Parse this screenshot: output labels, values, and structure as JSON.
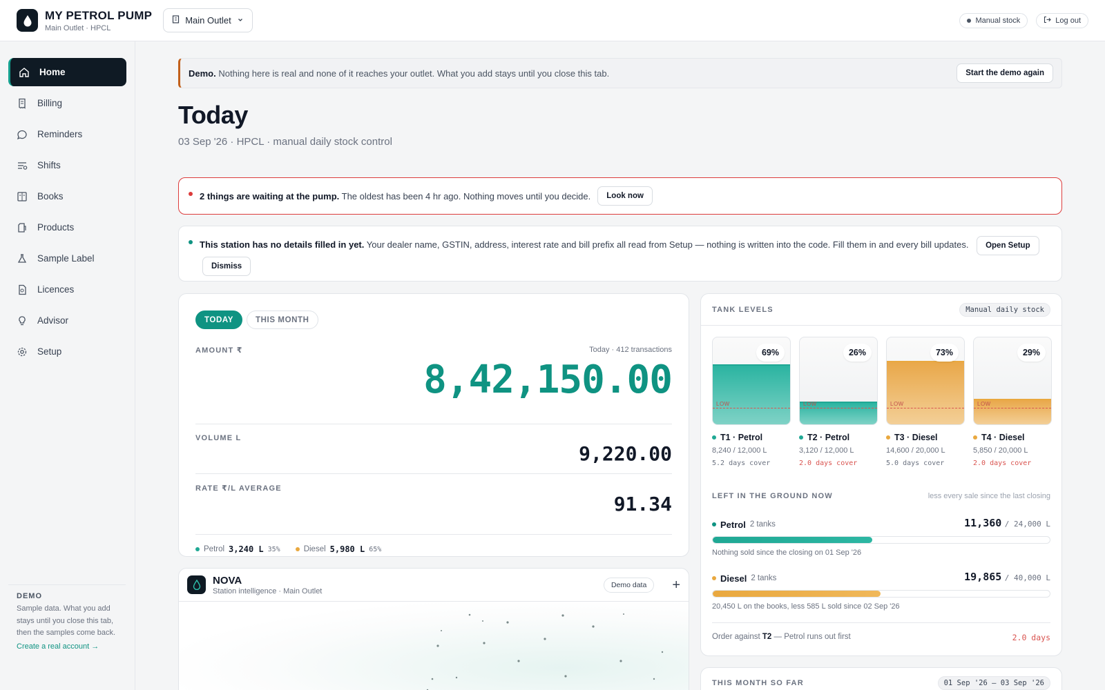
{
  "header": {
    "brand_title": "MY PETROL PUMP",
    "brand_sub": "Main Outlet · HPCL",
    "outlet_select": "Main Outlet",
    "stock_mode": "Manual stock",
    "logout": "Log out"
  },
  "sidebar": {
    "items": [
      {
        "label": "Home",
        "icon": "home-icon",
        "active": true
      },
      {
        "label": "Billing",
        "icon": "receipt-icon"
      },
      {
        "label": "Reminders",
        "icon": "chat-bubble-icon"
      },
      {
        "label": "Shifts",
        "icon": "shifts-icon"
      },
      {
        "label": "Books",
        "icon": "book-icon"
      },
      {
        "label": "Products",
        "icon": "fuel-can-icon"
      },
      {
        "label": "Sample Label",
        "icon": "flask-icon"
      },
      {
        "label": "Licences",
        "icon": "document-icon"
      },
      {
        "label": "Advisor",
        "icon": "lightbulb-icon"
      },
      {
        "label": "Setup",
        "icon": "gear-icon"
      }
    ],
    "demo": {
      "label": "DEMO",
      "text": "Sample data. What you add stays until you close this tab, then the samples come back.",
      "link": "Create a real account →"
    }
  },
  "banner": {
    "strong": "Demo.",
    "text": "Nothing here is real and none of it reaches your outlet. What you add stays until you close this tab.",
    "button": "Start the demo again"
  },
  "page": {
    "title": "Today",
    "subtitle": "03 Sep '26 · HPCL · manual daily stock control"
  },
  "alert": {
    "strong": "2 things are waiting at the pump.",
    "text": "The oldest has been 4 hr ago. Nothing moves until you decide.",
    "button": "Look now"
  },
  "notice": {
    "strong": "This station has no details filled in yet.",
    "text": "Your dealer name, GSTIN, address, interest rate and bill prefix all read from Setup — nothing is written into the code. Fill them in and every bill updates.",
    "open_button": "Open Setup",
    "dismiss_button": "Dismiss"
  },
  "sales": {
    "tab_today": "TODAY",
    "tab_month": "THIS MONTH",
    "amount_label": "AMOUNT ₹",
    "amount_meta": "Today · 412 transactions",
    "amount_value": "8,42,150.00",
    "volume_label": "VOLUME L",
    "volume_value": "9,220.00",
    "rate_label": "RATE ₹/L AVERAGE",
    "rate_value": "91.34",
    "petrol_label": "Petrol",
    "petrol_volume": "3,240 L",
    "petrol_pct": "35%",
    "diesel_label": "Diesel",
    "diesel_volume": "5,980 L",
    "diesel_pct": "65%"
  },
  "nova": {
    "title": "NOVA",
    "subtitle": "Station intelligence · Main Outlet",
    "badge": "Demo data"
  },
  "tanks": {
    "title": "TANK LEVELS",
    "badge": "Manual daily stock",
    "low_label": "LOW",
    "items": [
      {
        "name": "T1 · Petrol",
        "pct": "69%",
        "level": 0.69,
        "capacity": "8,240 / 12,000 L",
        "cover": "5.2 days cover",
        "fuel": "petrol",
        "low": false
      },
      {
        "name": "T2 · Petrol",
        "pct": "26%",
        "level": 0.26,
        "capacity": "3,120 / 12,000 L",
        "cover": "2.0 days cover",
        "fuel": "petrol",
        "low": true
      },
      {
        "name": "T3 · Diesel",
        "pct": "73%",
        "level": 0.73,
        "capacity": "14,600 / 20,000 L",
        "cover": "5.0 days cover",
        "fuel": "diesel",
        "low": false
      },
      {
        "name": "T4 · Diesel",
        "pct": "29%",
        "level": 0.29,
        "capacity": "5,850 / 20,000 L",
        "cover": "2.0 days cover",
        "fuel": "diesel",
        "low": true
      }
    ],
    "ground_title": "LEFT IN THE GROUND NOW",
    "ground_note": "less every sale since the last closing",
    "petrol": {
      "name": "Petrol",
      "tanks": "2 tanks",
      "value": "11,360",
      "of": "/ 24,000 L",
      "level": 0.473,
      "note": "Nothing sold since the closing on 01 Sep '26"
    },
    "diesel": {
      "name": "Diesel",
      "tanks": "2 tanks",
      "value": "19,865",
      "of": "/ 40,000 L",
      "level": 0.497,
      "note": "20,450 L on the books, less 585 L sold since 02 Sep '26"
    },
    "order_prefix": "Order against",
    "order_tank": "T2",
    "order_suffix": "— Petrol runs out first",
    "order_days": "2.0 days"
  },
  "month": {
    "title": "THIS MONTH SO FAR",
    "range": "01 Sep '26 – 03 Sep '26"
  },
  "colors": {
    "accent": "#0f9382",
    "petrol": "#1fa894",
    "diesel": "#e9a83f",
    "alert": "#dc3b3b",
    "dark": "#0f1a24",
    "low": "#d9534f"
  }
}
